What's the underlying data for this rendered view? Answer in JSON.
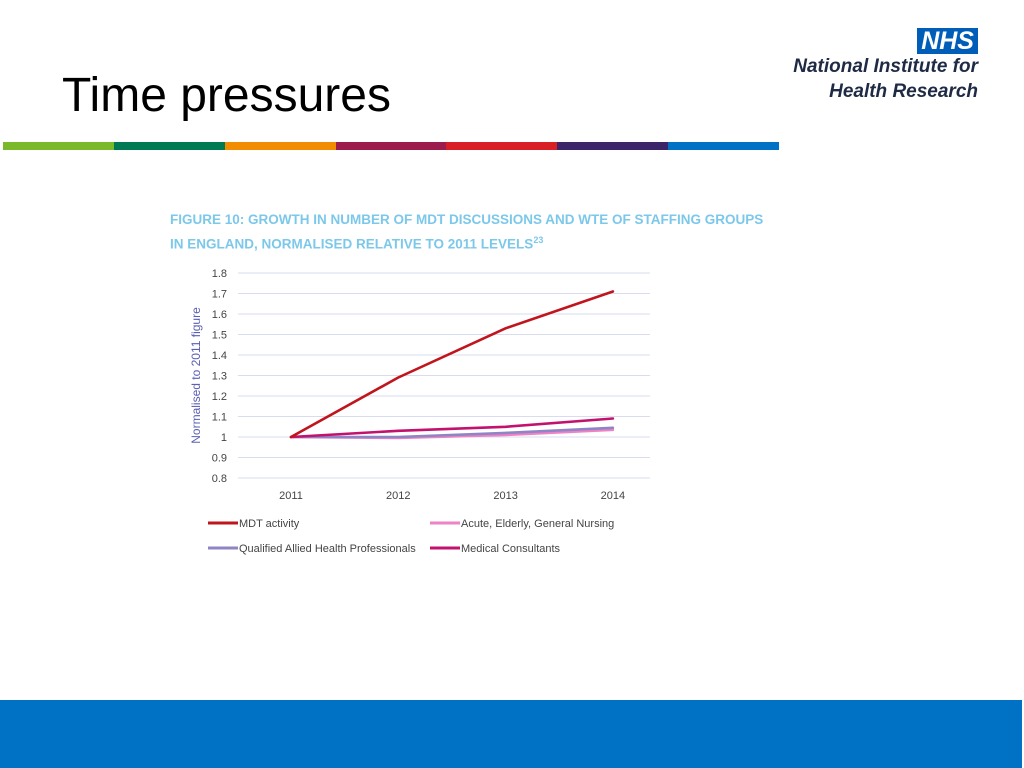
{
  "slide": {
    "title": "Time pressures",
    "logo": {
      "badge": "NHS",
      "line1": "National Institute for",
      "line2": "Health Research"
    },
    "strip_colors": [
      "#7ab929",
      "#007a52",
      "#f28c00",
      "#9d1c4e",
      "#d91f26",
      "#3c2468",
      "#0072c6"
    ],
    "footer_color": "#0072c6"
  },
  "chart_data": {
    "type": "line",
    "title": "FIGURE 10:  GROWTH IN NUMBER OF MDT DISCUSSIONS AND WTE OF STAFFING GROUPS",
    "title_line2": "IN ENGLAND, NORMALISED RELATIVE TO 2011 LEVELS",
    "title_superscript": "23",
    "xlabel": "",
    "ylabel": "Normalised to 2011 figure",
    "categories": [
      "2011",
      "2012",
      "2013",
      "2014"
    ],
    "ylim": [
      0.8,
      1.8
    ],
    "yticks": [
      "0.8",
      "0.9",
      "1",
      "1.1",
      "1.2",
      "1.3",
      "1.4",
      "1.5",
      "1.6",
      "1.7",
      "1.8"
    ],
    "grid": true,
    "legend_position": "bottom",
    "series": [
      {
        "name": "MDT activity",
        "color": "#c0151c",
        "values": [
          1.0,
          1.29,
          1.53,
          1.71
        ]
      },
      {
        "name": "Acute, Elderly, General Nursing",
        "color": "#ee82c4",
        "values": [
          1.0,
          0.995,
          1.01,
          1.035
        ]
      },
      {
        "name": "Qualified Allied Health Professionals",
        "color": "#8f84c4",
        "values": [
          1.0,
          1.0,
          1.02,
          1.045
        ]
      },
      {
        "name": "Medical Consultants",
        "color": "#c2126e",
        "values": [
          1.0,
          1.03,
          1.05,
          1.09
        ]
      }
    ]
  }
}
